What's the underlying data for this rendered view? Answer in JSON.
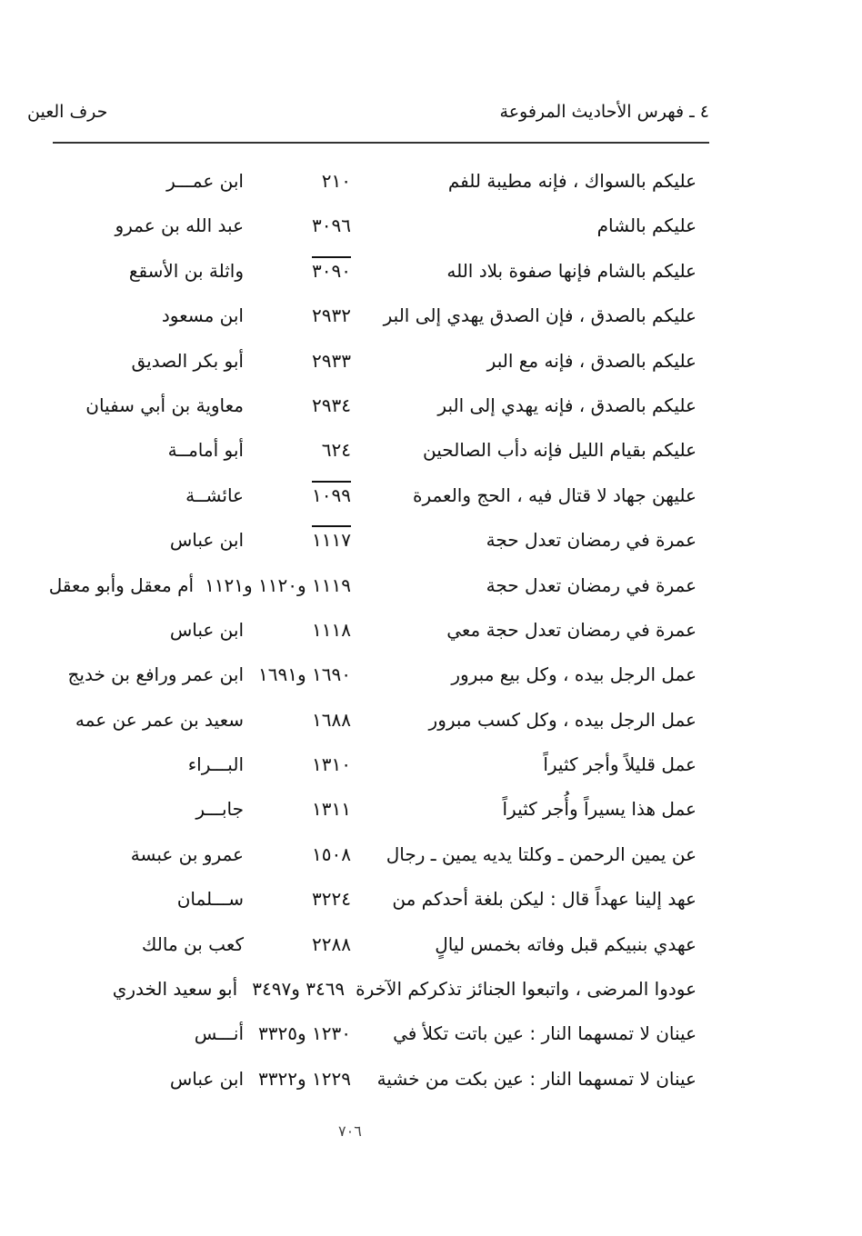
{
  "header": {
    "section_title": "٤ ـ فهرس الأحاديث المرفوعة",
    "letter_title": "حرف العين"
  },
  "entries": [
    {
      "hadith": "عليكم بالسواك ، فإنه مطيبة للفم",
      "number": "٢١٠",
      "narrator": "ابن عمـــر"
    },
    {
      "hadith": "عليكم بالشام",
      "number": "٣٠٩٦",
      "narrator": "عبد الله بن عمرو"
    },
    {
      "hadith": "عليكم بالشام فإنها صفوة بلاد الله",
      "number": "٣٠٩٠",
      "narrator": "واثلة بن الأسقع",
      "overline": true
    },
    {
      "hadith": "عليكم بالصدق ، فإن الصدق يهدي إلى البر",
      "number": "٢٩٣٢",
      "narrator": "ابن مسعود"
    },
    {
      "hadith": "عليكم بالصدق ، فإنه مع البر",
      "number": "٢٩٣٣",
      "narrator": "أبو بكر الصديق"
    },
    {
      "hadith": "عليكم بالصدق ، فإنه يهدي إلى البر",
      "number": "٢٩٣٤",
      "narrator": "معاوية بن أبي سفيان"
    },
    {
      "hadith": "عليكم بقيام الليل فإنه دأب الصالحين",
      "number": "٦٢٤",
      "narrator": "أبو أمامــة"
    },
    {
      "hadith": "عليهن جهاد لا قتال فيه ، الحج والعمرة",
      "number": "١٠٩٩",
      "narrator": "عائشــة",
      "overline": true
    },
    {
      "hadith": "عمرة في رمضان تعدل حجة",
      "number": "١١١٧",
      "narrator": "ابن عباس",
      "overline": true
    },
    {
      "hadith": "عمرة في رمضان تعدل حجة",
      "number": "١١١٩ و١١٢٠ و١١٢١",
      "narrator": "أم معقل وأبو معقل"
    },
    {
      "hadith": "عمرة في رمضان تعدل حجة معي",
      "number": "١١١٨",
      "narrator": "ابن عباس"
    },
    {
      "hadith": "عمل الرجل بيده ، وكل بيع مبرور",
      "number": "١٦٩٠ و١٦٩١",
      "narrator": "ابن عمر ورافع بن خديج"
    },
    {
      "hadith": "عمل الرجل بيده ، وكل كسب مبرور",
      "number": "١٦٨٨",
      "narrator": "سعيد بن عمر عن عمه"
    },
    {
      "hadith": "عمل قليلاً وأجر كثيراً",
      "number": "١٣١٠",
      "narrator": "البـــراء"
    },
    {
      "hadith": "عمل هذا يسيراً وأُجر كثيراً",
      "number": "١٣١١",
      "narrator": "جابـــر"
    },
    {
      "hadith": "عن يمين الرحمن ـ وكلتا يديه يمين ـ رجال",
      "number": "١٥٠٨",
      "narrator": "عمرو بن عبسة"
    },
    {
      "hadith": "عهد إلينا عهداً قال : ليكن بلغة أحدكم من",
      "number": "٣٢٢٤",
      "narrator": "ســـلمان"
    },
    {
      "hadith": "عهدي بنبيكم قبل وفاته بخمس ليالٍ",
      "number": "٢٢٨٨",
      "narrator": "كعب بن مالك"
    },
    {
      "hadith": "عودوا المرضى ، واتبعوا الجنائز تذكركم الآخرة",
      "number": "٣٤٦٩ و٣٤٩٧",
      "narrator": "أبو سعيد الخدري"
    },
    {
      "hadith": "عينان لا تمسهما النار : عين باتت تكلأ في",
      "number": "١٢٣٠ و٣٣٢٥",
      "narrator": "أنـــس"
    },
    {
      "hadith": "عينان لا تمسهما النار : عين بكت من خشية",
      "number": "١٢٢٩ و٣٣٢٢",
      "narrator": "ابن عباس"
    }
  ],
  "footer": {
    "page_number": "٧٠٦"
  }
}
